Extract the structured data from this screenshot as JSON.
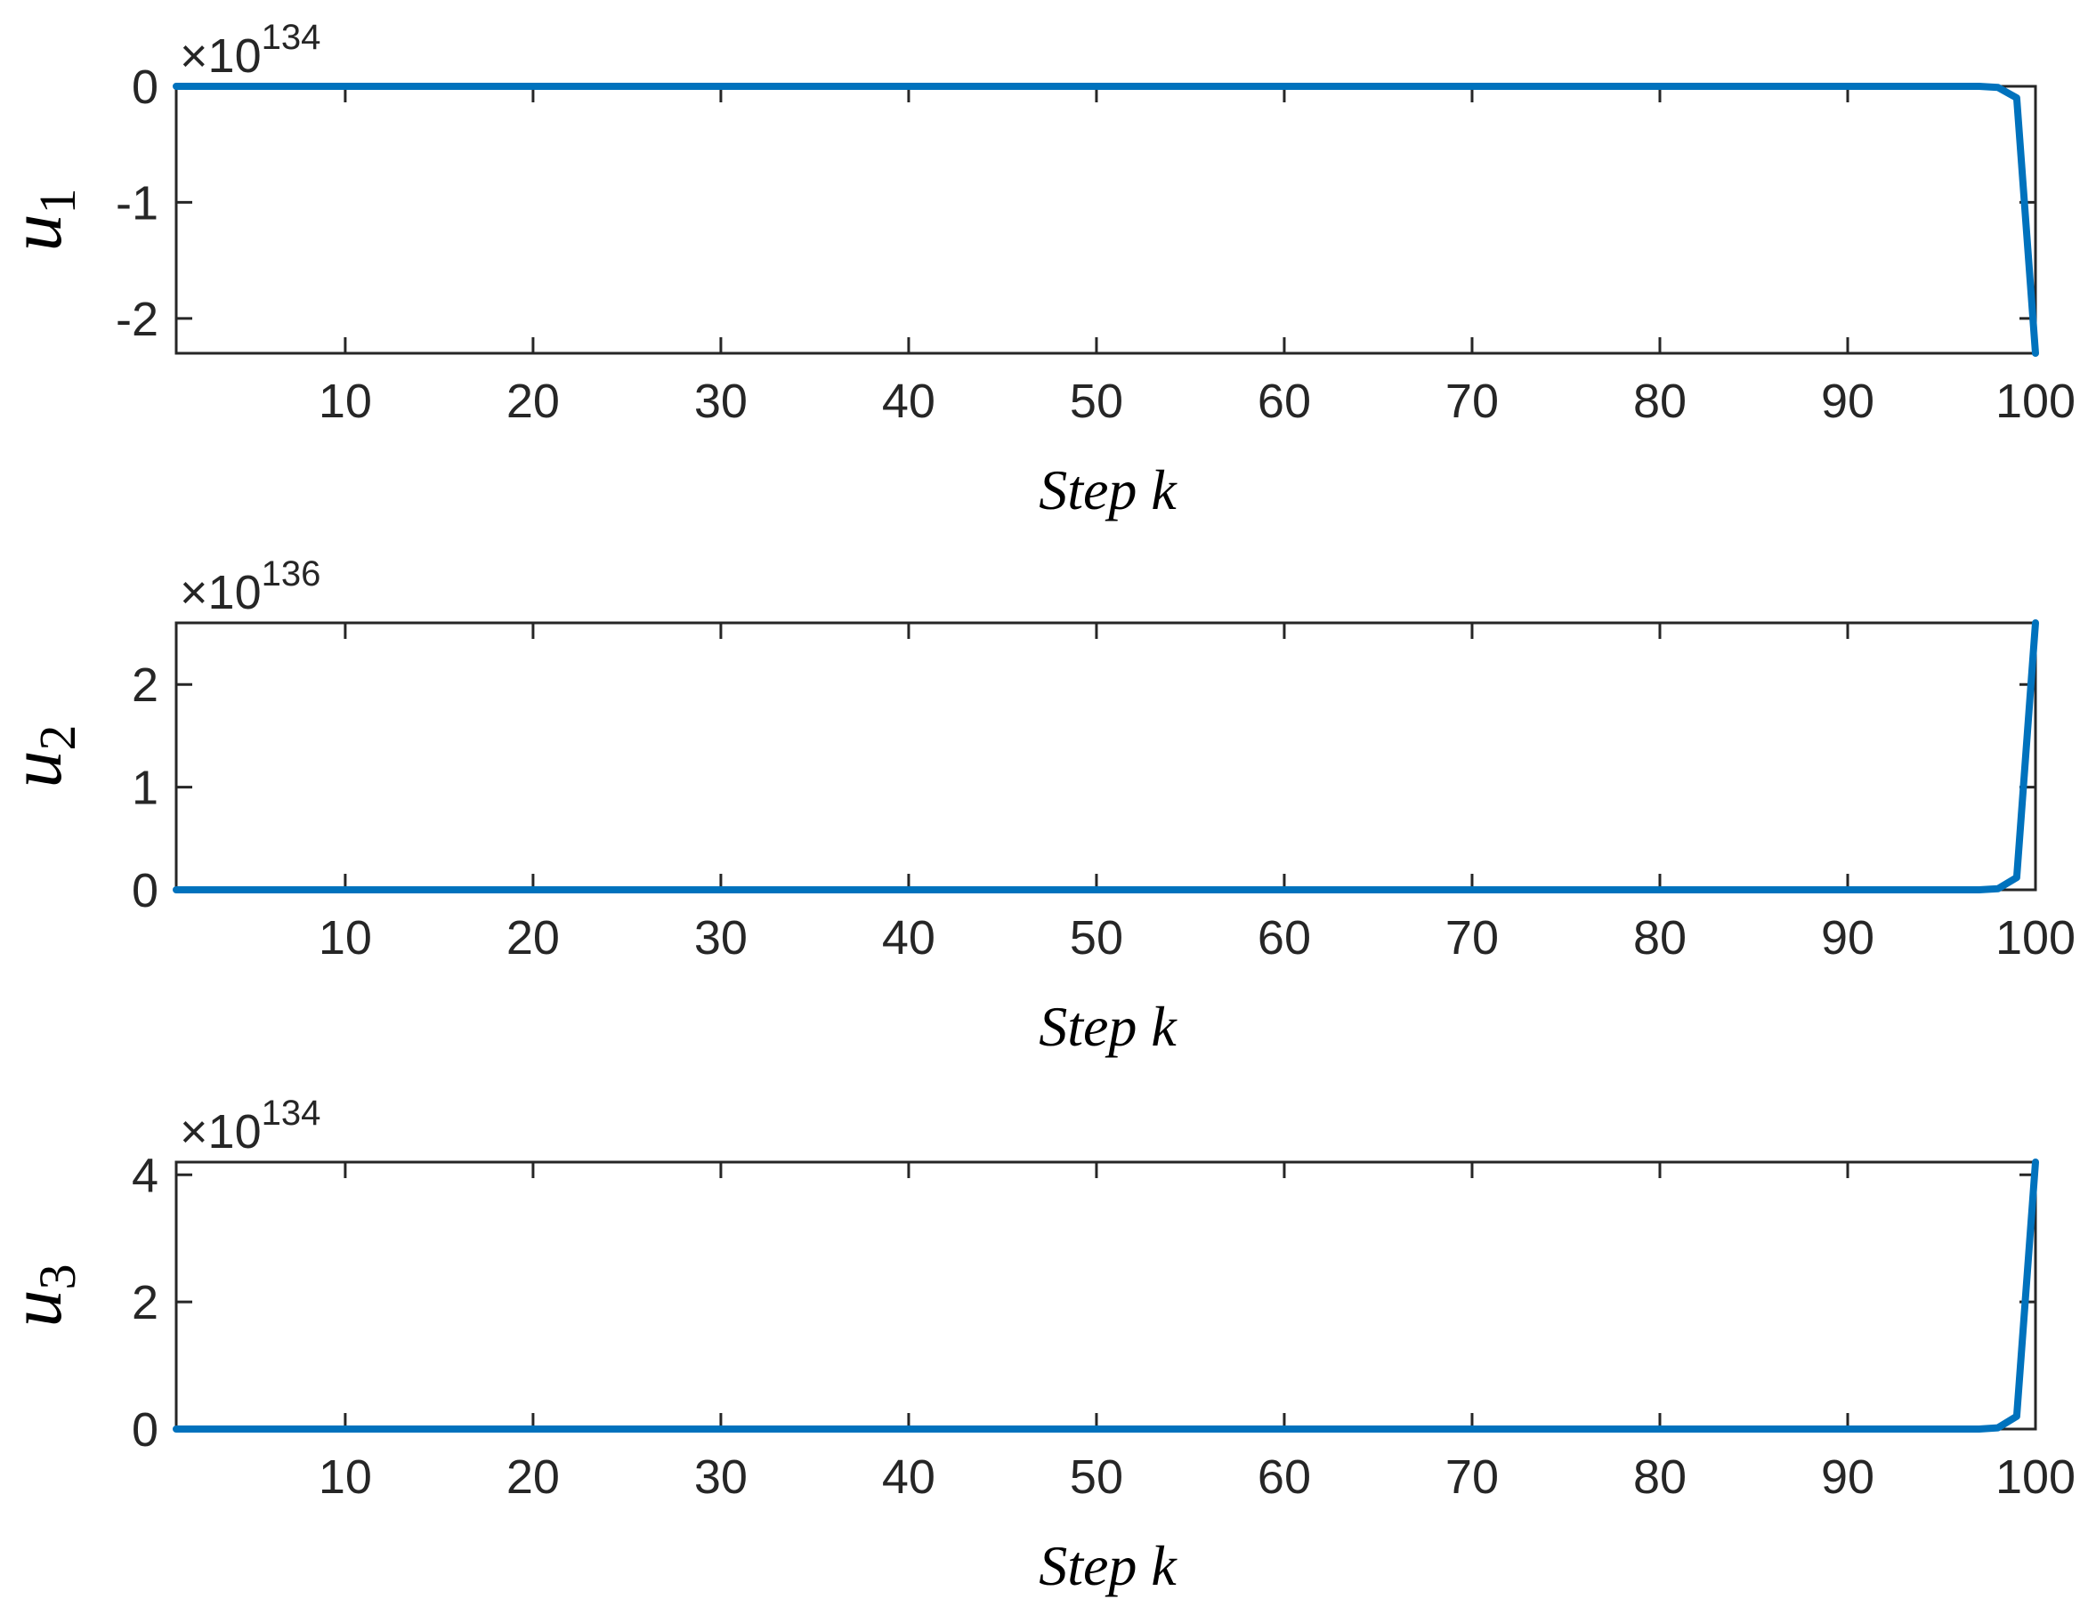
{
  "chart_data": [
    {
      "type": "line",
      "ylabel": "u",
      "ylabel_subscript": "1",
      "xlabel": "Step k",
      "exponent_label": "×10",
      "exponent_power": "134",
      "xlim": [
        1,
        100
      ],
      "ylim": [
        -2.3,
        0
      ],
      "xticks": [
        10,
        20,
        30,
        40,
        50,
        60,
        70,
        80,
        90,
        100
      ],
      "yticks": [
        0,
        -1,
        -2
      ],
      "ytick_labels": [
        "0",
        "-1",
        "-2"
      ],
      "grid": false,
      "color": "#0072BD",
      "series": [
        {
          "x": [
            1,
            97,
            98,
            99,
            100
          ],
          "values": [
            0,
            0,
            -0.01,
            -0.1,
            -2.3
          ]
        }
      ]
    },
    {
      "type": "line",
      "ylabel": "u",
      "ylabel_subscript": "2",
      "xlabel": "Step k",
      "exponent_label": "×10",
      "exponent_power": "136",
      "xlim": [
        1,
        100
      ],
      "ylim": [
        0,
        2.6
      ],
      "xticks": [
        10,
        20,
        30,
        40,
        50,
        60,
        70,
        80,
        90,
        100
      ],
      "yticks": [
        0,
        1,
        2
      ],
      "ytick_labels": [
        "0",
        "1",
        "2"
      ],
      "grid": false,
      "color": "#0072BD",
      "series": [
        {
          "x": [
            1,
            97,
            98,
            99,
            100
          ],
          "values": [
            0,
            0,
            0.01,
            0.12,
            2.6
          ]
        }
      ]
    },
    {
      "type": "line",
      "ylabel": "u",
      "ylabel_subscript": "3",
      "xlabel": "Step k",
      "exponent_label": "×10",
      "exponent_power": "134",
      "xlim": [
        1,
        100
      ],
      "ylim": [
        0,
        4.2
      ],
      "xticks": [
        10,
        20,
        30,
        40,
        50,
        60,
        70,
        80,
        90,
        100
      ],
      "yticks": [
        0,
        2,
        4
      ],
      "ytick_labels": [
        "0",
        "2",
        "4"
      ],
      "grid": false,
      "color": "#0072BD",
      "series": [
        {
          "x": [
            1,
            97,
            98,
            99,
            100
          ],
          "values": [
            0,
            0,
            0.02,
            0.2,
            4.2
          ]
        }
      ]
    }
  ]
}
